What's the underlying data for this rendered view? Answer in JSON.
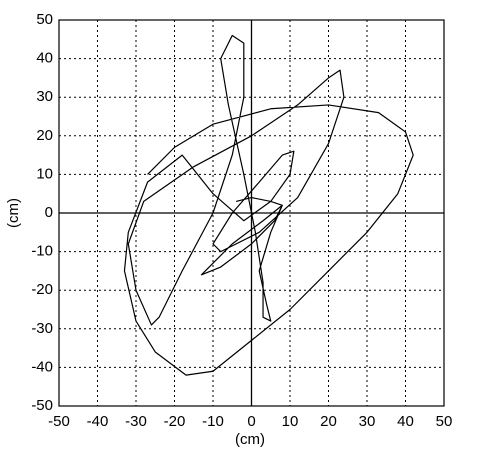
{
  "chart_data": {
    "type": "line",
    "xlabel": "(cm)",
    "ylabel": "(cm)",
    "xlim": [
      -50,
      50
    ],
    "ylim": [
      -50,
      50
    ],
    "xticks": [
      -50,
      -40,
      -30,
      -20,
      -10,
      0,
      10,
      20,
      30,
      40,
      50
    ],
    "yticks": [
      -50,
      -40,
      -30,
      -20,
      -10,
      0,
      10,
      20,
      30,
      40,
      50
    ],
    "grid": true,
    "color": "#000000",
    "x": [
      -4,
      0,
      5,
      8,
      3,
      -5,
      -12,
      -13,
      -8,
      0,
      6,
      8,
      5,
      2,
      4,
      5,
      3,
      3,
      1,
      -2,
      -6,
      -8,
      -5,
      -2,
      -2,
      -5,
      -10,
      -18,
      -24,
      -26,
      -30,
      -32,
      -28,
      -15,
      0,
      12,
      20,
      23,
      24,
      20,
      12,
      2,
      -8,
      -10,
      -5,
      2,
      8,
      11,
      10,
      5,
      -2,
      -10,
      -18,
      -27,
      -32,
      -33,
      -30,
      -25,
      -17,
      -10,
      0,
      10,
      20,
      30,
      38,
      42,
      40,
      33,
      20,
      5,
      -10,
      -20,
      -27
    ],
    "y": [
      3,
      4,
      3,
      2,
      -2,
      -8,
      -15,
      -16,
      -14,
      -8,
      -2,
      2,
      -5,
      -15,
      -24,
      -28,
      -27,
      -18,
      -5,
      10,
      28,
      40,
      46,
      44,
      30,
      15,
      0,
      -15,
      -27,
      -29,
      -20,
      -8,
      3,
      12,
      20,
      28,
      35,
      37,
      30,
      18,
      4,
      -5,
      -10,
      -8,
      0,
      8,
      15,
      16,
      10,
      3,
      -2,
      5,
      15,
      8,
      -5,
      -15,
      -28,
      -36,
      -42,
      -41,
      -33,
      -25,
      -15,
      -5,
      5,
      15,
      21,
      26,
      28,
      27,
      23,
      17,
      10
    ]
  }
}
